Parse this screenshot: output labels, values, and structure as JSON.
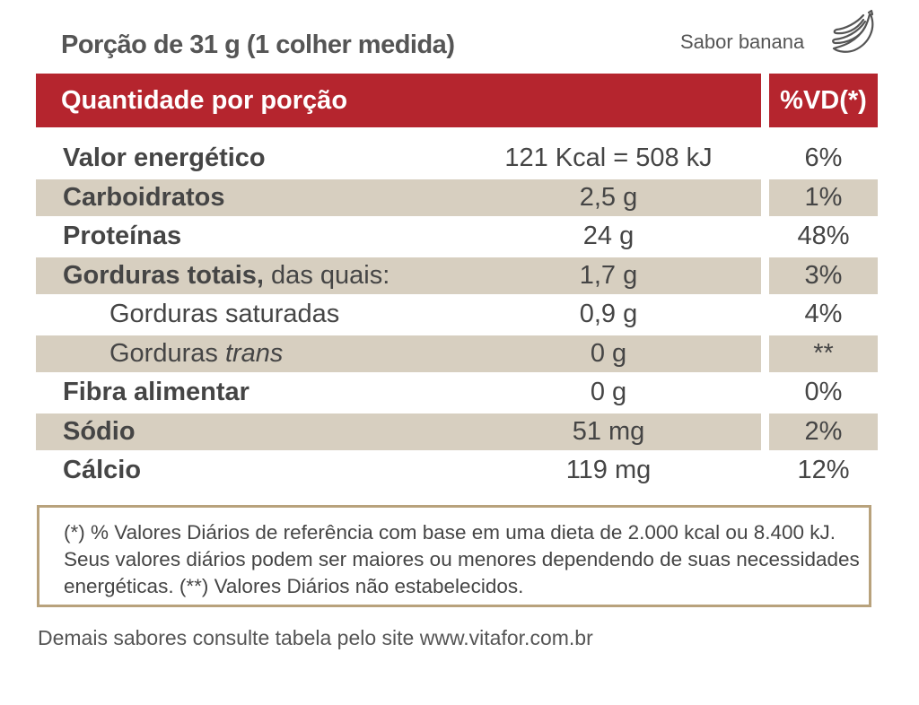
{
  "portion": "Porção de 31 g (1 colher medida)",
  "flavor": "Sabor banana",
  "icon": "banana-icon",
  "colors": {
    "header": "#b5252e",
    "shade": "#d7cfc0",
    "border": "#b8a27c"
  },
  "header": {
    "quantity": "Quantidade por porção",
    "dv": "%VD(*)"
  },
  "rows": [
    {
      "name": "Valor energético",
      "amount": "121 Kcal = 508 kJ",
      "dv": "6%"
    },
    {
      "name": "Carboidratos",
      "amount": "2,5 g",
      "dv": "1%"
    },
    {
      "name": "Proteínas",
      "amount": "24 g",
      "dv": "48%"
    },
    {
      "name": "Gorduras totais,",
      "suffix": " das quais:",
      "amount": "1,7 g",
      "dv": "3%"
    },
    {
      "name": "Gorduras saturadas",
      "amount": "0,9 g",
      "dv": "4%"
    },
    {
      "name": "Gorduras ",
      "italic": "trans",
      "amount": "0 g",
      "dv": "**"
    },
    {
      "name": "Fibra alimentar",
      "amount": "0 g",
      "dv": "0%"
    },
    {
      "name": "Sódio",
      "amount": "51 mg",
      "dv": "2%"
    },
    {
      "name": "Cálcio",
      "amount": "119 mg",
      "dv": "12%"
    }
  ],
  "note": "(*) % Valores Diários de referência com base em uma dieta de 2.000 kcal ou 8.400 kJ. Seus valores diários podem ser maiores ou menores dependendo de suas necessidades energéticas. (**) Valores Diários não estabelecidos.",
  "footer": "Demais sabores consulte tabela pelo site www.vitafor.com.br"
}
